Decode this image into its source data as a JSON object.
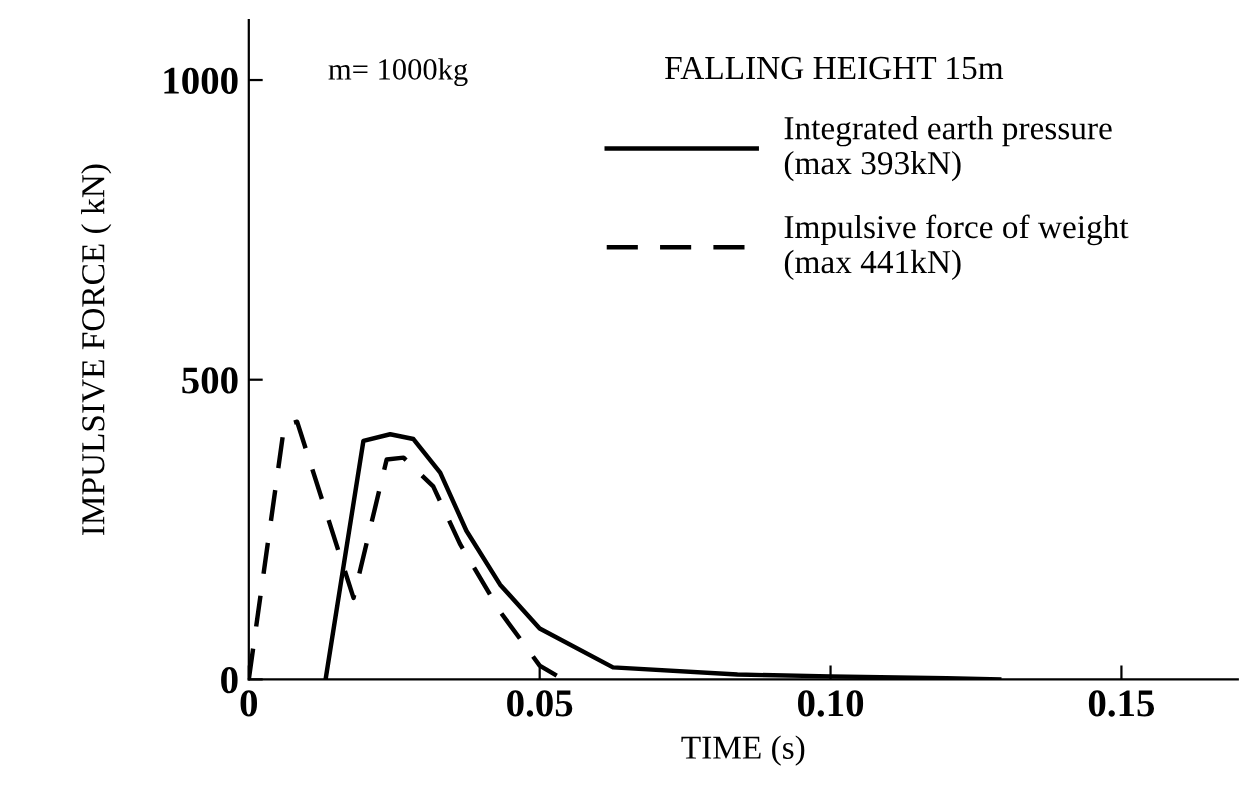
{
  "chart_data": {
    "type": "line",
    "xlabel": "TIME (s)",
    "ylabel": "IMPULSIVE FORCE ( kN)",
    "annotations": [
      "m= 1000kg",
      "FALLING HEIGHT 15m"
    ],
    "xlim": [
      0,
      0.17
    ],
    "xticks": [
      0,
      {
        "value": 0.05,
        "label": "0.05"
      },
      {
        "value": 0.1,
        "label": "0.10"
      },
      {
        "value": 0.15,
        "label": "0.15"
      }
    ],
    "ylim": [
      0,
      1100
    ],
    "yticks": [
      0,
      500,
      1000
    ],
    "grid": false,
    "legend": "top right",
    "series": [
      {
        "name": "Integrated earth pressure\n(max 393kN)",
        "color": "#000000",
        "line_style": "solid",
        "x": [
          0.0132,
          0.0197,
          0.0243,
          0.0283,
          0.0329,
          0.0374,
          0.0432,
          0.05,
          0.0626,
          0.084,
          0.1,
          0.12,
          0.129
        ],
        "values": [
          0,
          398,
          409,
          401,
          345,
          248,
          158,
          85,
          20,
          8,
          5,
          2,
          0
        ]
      },
      {
        "name": "Impulsive force of weight\n(max 441kN)",
        "color": "#000000",
        "line_style": "dashed",
        "x": [
          0,
          0.0061,
          0.0083,
          0.018,
          0.0237,
          0.0266,
          0.0317,
          0.0363,
          0.0432,
          0.05,
          0.054
        ],
        "values": [
          0,
          424,
          430,
          136,
          367,
          370,
          322,
          226,
          113,
          23,
          0
        ]
      }
    ]
  }
}
